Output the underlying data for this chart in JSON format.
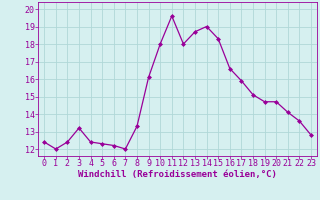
{
  "x": [
    0,
    1,
    2,
    3,
    4,
    5,
    6,
    7,
    8,
    9,
    10,
    11,
    12,
    13,
    14,
    15,
    16,
    17,
    18,
    19,
    20,
    21,
    22,
    23
  ],
  "y": [
    12.4,
    12.0,
    12.4,
    13.2,
    12.4,
    12.3,
    12.2,
    12.0,
    13.3,
    16.1,
    18.0,
    19.6,
    18.0,
    18.7,
    19.0,
    18.3,
    16.6,
    15.9,
    15.1,
    14.7,
    14.7,
    14.1,
    13.6,
    12.8
  ],
  "line_color": "#990099",
  "marker": "D",
  "marker_size": 2.0,
  "linewidth": 0.9,
  "bg_color": "#d6f0f0",
  "grid_color": "#b0d8d8",
  "xlabel": "Windchill (Refroidissement éolien,°C)",
  "xlabel_fontsize": 6.5,
  "ylim": [
    11.6,
    20.4
  ],
  "xlim": [
    -0.5,
    23.5
  ],
  "tick_fontsize": 6.0,
  "tick_color": "#990099",
  "axis_color": "#990099",
  "yticks": [
    12,
    13,
    14,
    15,
    16,
    17,
    18,
    19,
    20
  ]
}
